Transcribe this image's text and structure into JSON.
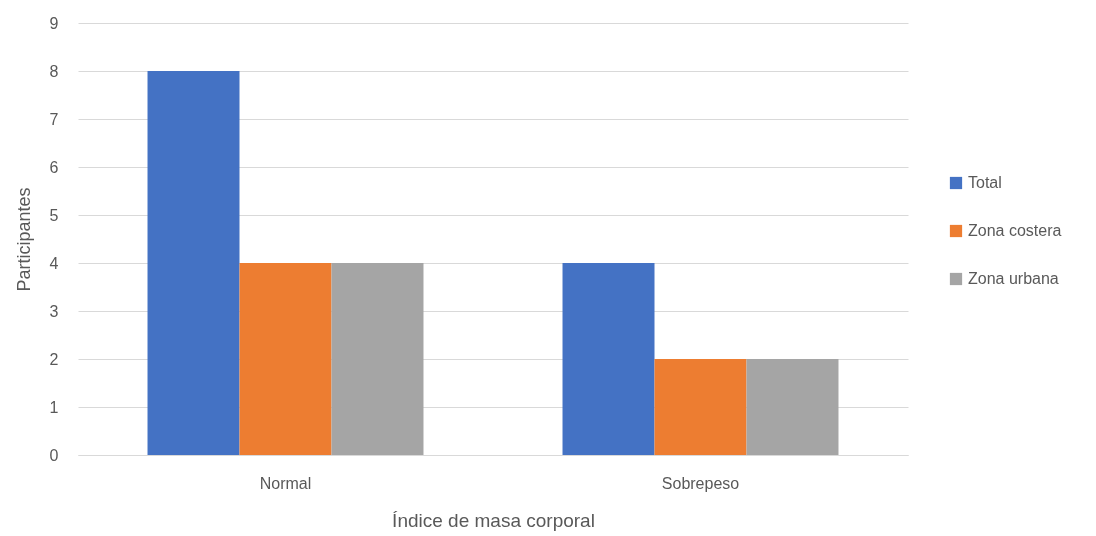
{
  "chart_data": {
    "type": "bar",
    "xlabel": "Índice de masa corporal",
    "ylabel": "Participantes",
    "categories": [
      "Normal",
      "Sobrepeso"
    ],
    "series": [
      {
        "name": "Total",
        "color": "#4472c4",
        "values": [
          8,
          4
        ]
      },
      {
        "name": "Zona costera",
        "color": "#ed7d31",
        "values": [
          4,
          2
        ]
      },
      {
        "name": "Zona urbana",
        "color": "#a5a5a5",
        "values": [
          4,
          2
        ]
      }
    ],
    "ylim": [
      0,
      9
    ],
    "yticks": [
      0,
      1,
      2,
      3,
      4,
      5,
      6,
      7,
      8,
      9
    ],
    "grid": "y",
    "legend": "right"
  }
}
